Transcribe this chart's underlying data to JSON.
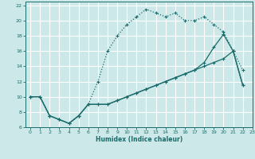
{
  "xlabel": "Humidex (Indice chaleur)",
  "bg_color": "#cce8e8",
  "grid_color": "#ffffff",
  "line_color": "#1a6b6b",
  "xlim": [
    -0.5,
    23
  ],
  "ylim": [
    6,
    22.5
  ],
  "xticks": [
    0,
    1,
    2,
    3,
    4,
    5,
    6,
    7,
    8,
    9,
    10,
    11,
    12,
    13,
    14,
    15,
    16,
    17,
    18,
    19,
    20,
    21,
    22,
    23
  ],
  "yticks": [
    6,
    8,
    10,
    12,
    14,
    16,
    18,
    20,
    22
  ],
  "line1_x": [
    0,
    1,
    2,
    3,
    4,
    5,
    6,
    7,
    8,
    9,
    10,
    11,
    12,
    13,
    14,
    15,
    16,
    17,
    18,
    19,
    20,
    21,
    22
  ],
  "line1_y": [
    10,
    10,
    7.5,
    7,
    6.5,
    7.5,
    9,
    12,
    16,
    18,
    19.5,
    20.5,
    21.5,
    21,
    20.5,
    21,
    20,
    20,
    20.5,
    19.5,
    18.5,
    16,
    13.5
  ],
  "line2_x": [
    0,
    1,
    2,
    3,
    4,
    5,
    6,
    7,
    8,
    9,
    10,
    11,
    12,
    13,
    14,
    15,
    16,
    17,
    18,
    19,
    20,
    21,
    22
  ],
  "line2_y": [
    10,
    10,
    7.5,
    7,
    6.5,
    7.5,
    9,
    9,
    9,
    9.5,
    10,
    10.5,
    11,
    11.5,
    12,
    12.5,
    13,
    13.5,
    14,
    14.5,
    15,
    16,
    11.5
  ],
  "line3_x": [
    0,
    1,
    2,
    3,
    4,
    5,
    6,
    7,
    8,
    9,
    10,
    11,
    12,
    13,
    14,
    15,
    16,
    17,
    18,
    19,
    20,
    21,
    22
  ],
  "line3_y": [
    10,
    10,
    7.5,
    7,
    6.5,
    7.5,
    9,
    9,
    9,
    9.5,
    10,
    10.5,
    11,
    11.5,
    12,
    12.5,
    13,
    13.5,
    14.5,
    16.5,
    18.2,
    16,
    11.5
  ]
}
